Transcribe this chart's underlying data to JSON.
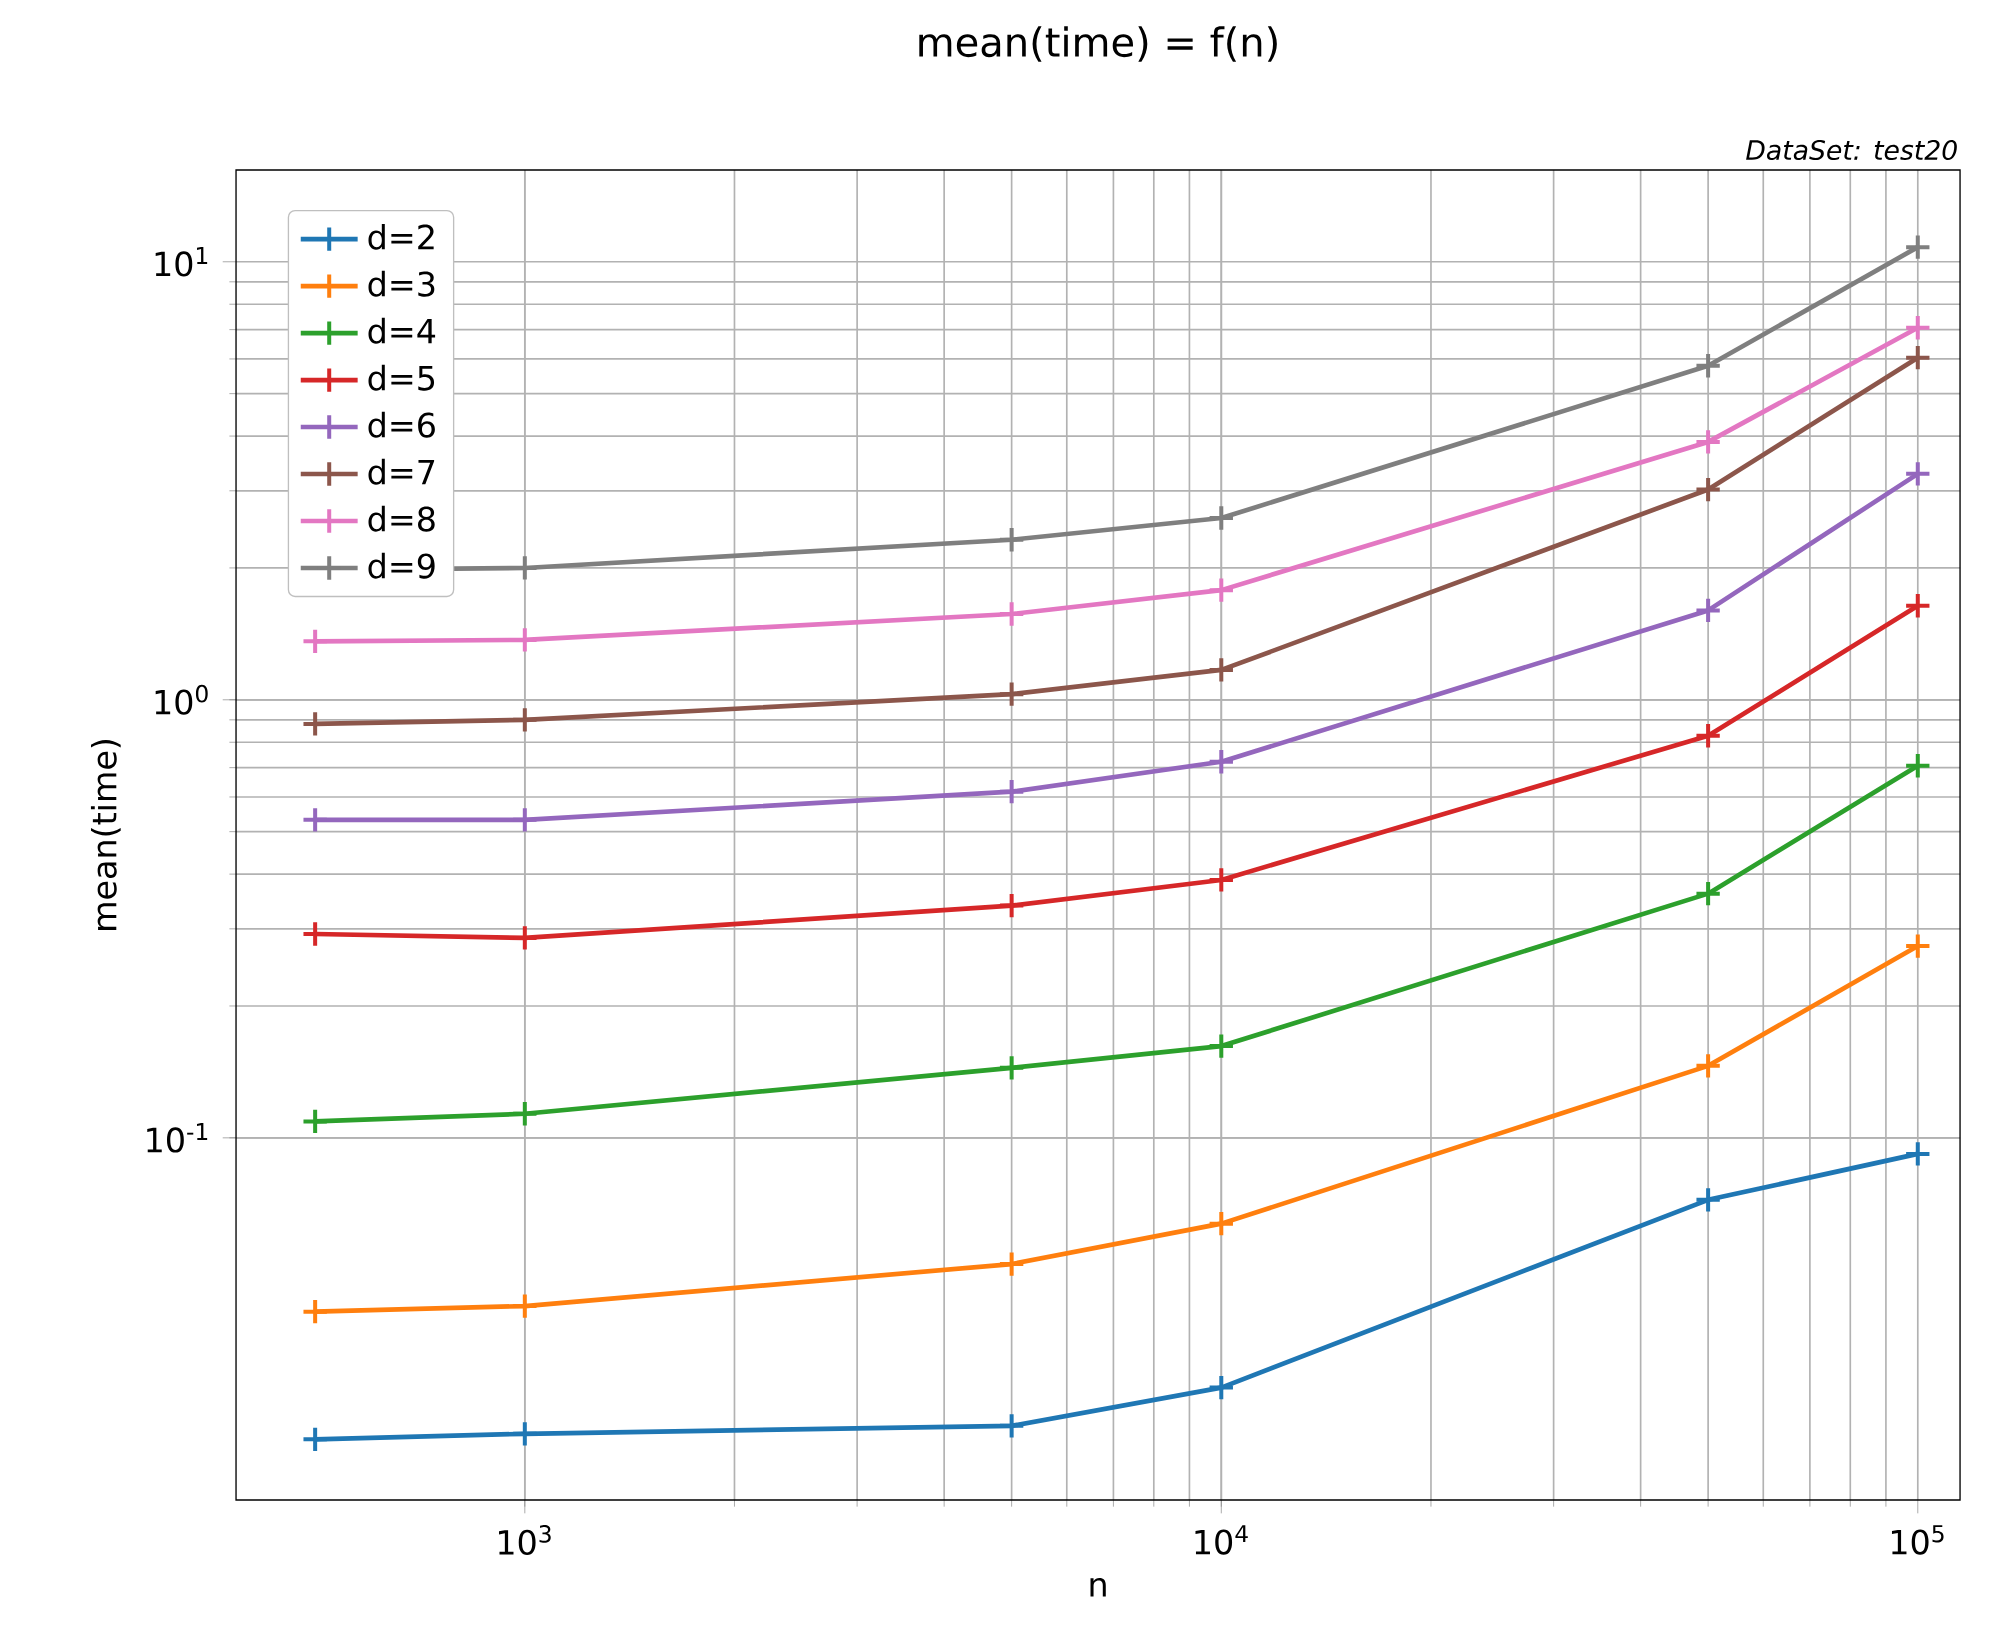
{
  "chart_data": {
    "type": "line",
    "title": "mean(time) = f(n)",
    "annotations": [
      "DataSet: test20"
    ],
    "xlabel": "n",
    "ylabel": "mean(time)",
    "log": "xy",
    "grid": true,
    "legend": "top left",
    "marker": "cross",
    "xlim": [
      385,
      115000
    ],
    "ylim": [
      0.0149,
      16.2
    ],
    "xticks": [
      {
        "value": 1000,
        "label": "10$^{3}$"
      },
      {
        "value": 10000,
        "label": "10$^{4}$"
      },
      {
        "value": 100000,
        "label": "10$^{5}$"
      }
    ],
    "yticks": [
      {
        "value": 0.1,
        "label": "10$^{-1}$"
      },
      {
        "value": 1,
        "label": "10$^{0}$"
      },
      {
        "value": 10,
        "label": "10$^{1}$"
      }
    ],
    "x": [
      500,
      1000,
      5000,
      10000,
      50000,
      100000
    ],
    "series": [
      {
        "name": "d=2",
        "color": "#1f77b4",
        "values": [
          0.0205,
          0.0211,
          0.022,
          0.0269,
          0.0722,
          0.0919
        ]
      },
      {
        "name": "d=3",
        "color": "#ff7f0e",
        "values": [
          0.0401,
          0.0413,
          0.0515,
          0.0637,
          0.146,
          0.274
        ]
      },
      {
        "name": "d=4",
        "color": "#2ca02c",
        "values": [
          0.109,
          0.1135,
          0.1445,
          0.162,
          0.361,
          0.707
        ]
      },
      {
        "name": "d=5",
        "color": "#d62728",
        "values": [
          0.292,
          0.286,
          0.339,
          0.388,
          0.828,
          1.64
        ]
      },
      {
        "name": "d=6",
        "color": "#9467bd",
        "values": [
          0.532,
          0.532,
          0.617,
          0.722,
          1.6,
          3.28
        ]
      },
      {
        "name": "d=7",
        "color": "#8c564b",
        "values": [
          0.881,
          0.9,
          1.03,
          1.17,
          3.02,
          6.04
        ]
      },
      {
        "name": "d=8",
        "color": "#e377c2",
        "values": [
          1.36,
          1.37,
          1.57,
          1.78,
          3.88,
          7.07
        ]
      },
      {
        "name": "d=9",
        "color": "#7f7f7f",
        "values": [
          1.98,
          2.0,
          2.32,
          2.6,
          5.79,
          10.8
        ]
      }
    ]
  }
}
